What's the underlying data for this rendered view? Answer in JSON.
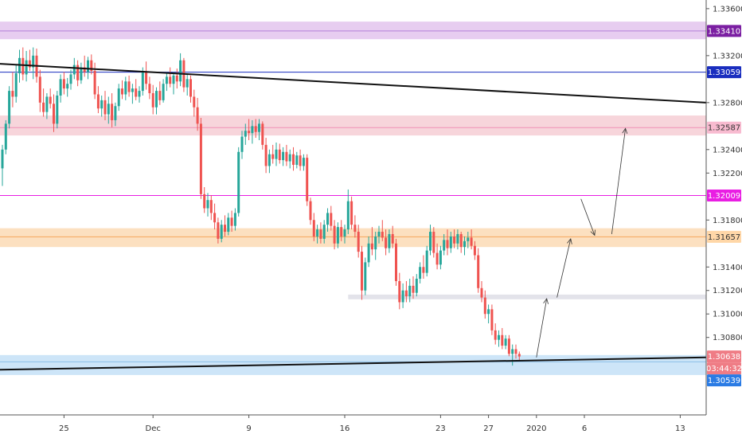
{
  "chart_data": {
    "type": "candlestick",
    "y_axis": {
      "ticks": [
        "1.33600",
        "1.33200",
        "1.32800",
        "1.32400",
        "1.32200",
        "1.31800",
        "1.31400",
        "1.31200",
        "1.31000",
        "1.30800"
      ],
      "tick_values": [
        1.336,
        1.332,
        1.328,
        1.324,
        1.322,
        1.318,
        1.314,
        1.312,
        1.31,
        1.308
      ],
      "range": [
        1.3032,
        1.3365
      ]
    },
    "x_axis": {
      "ticks": [
        "25",
        "Dec",
        "9",
        "16",
        "23",
        "27",
        "2020",
        "6",
        "13"
      ],
      "tick_bar_index": [
        18,
        44,
        72,
        100,
        128,
        142,
        156,
        170,
        198
      ],
      "bar_range": [
        0,
        210
      ]
    },
    "price_tags": [
      {
        "label": "1.33410",
        "value": 1.3341,
        "color": "#7b1fa2",
        "text_color": "#ffffff"
      },
      {
        "label": "1.33059",
        "value": 1.33059,
        "color": "#1a2ebf",
        "text_color": "#ffffff"
      },
      {
        "label": "1.32587",
        "value": 1.32587,
        "color": "#f8bbd0",
        "text_color": "#333333"
      },
      {
        "label": "1.32009",
        "value": 1.32009,
        "color": "#e91ee3",
        "text_color": "#ffffff"
      },
      {
        "label": "1.31657",
        "value": 1.31657,
        "color": "#ffd7a8",
        "text_color": "#333333"
      },
      {
        "label": "1.30638",
        "value": 1.30638,
        "color": "#ef7c85",
        "text_color": "#ffffff"
      },
      {
        "label": "03:44:32",
        "value": 1.30592,
        "color": "#ef7c85",
        "text_color": "#ffffff"
      },
      {
        "label": "1.30539",
        "value": 1.30539,
        "color": "#2a7be4",
        "text_color": "#ffffff"
      }
    ],
    "zones": [
      {
        "name": "resistance-zone-top",
        "from": 1.3334,
        "to": 1.3349,
        "fill": "#e7cdf0",
        "line": 1.3341,
        "line_color": "#b380d9",
        "x_from_bar": 0
      },
      {
        "name": "resistance-zone-mid",
        "from": 1.3252,
        "to": 1.3269,
        "fill": "#f7d5db",
        "line": 1.32587,
        "line_color": "#ef8fb5",
        "x_from_bar": 0
      },
      {
        "name": "resistance-zone-low",
        "from": 1.3157,
        "to": 1.3173,
        "fill": "#fce0c0",
        "line": 1.31657,
        "line_color": "#f5a65b",
        "x_from_bar": 0
      },
      {
        "name": "support-zone",
        "from": 1.3048,
        "to": 1.3065,
        "fill": "#cde5f8",
        "line": 1.30592,
        "line_color": "#8cbfe8",
        "x_from_bar": 0
      },
      {
        "name": "grey-zone",
        "from": 1.31125,
        "to": 1.31165,
        "fill": "#e3e3ea",
        "line": null,
        "line_color": null,
        "x_from_bar": 101
      }
    ],
    "horizontal_lines": [
      {
        "value": 1.33059,
        "color": "#1a2ebf"
      },
      {
        "value": 1.32009,
        "color": "#e91ee3"
      }
    ],
    "trend_lines": [
      {
        "from": {
          "bar": 0,
          "value": 1.3313
        },
        "to": {
          "bar": 210,
          "value": 1.328
        },
        "color": "#111111"
      },
      {
        "from": {
          "bar": 0,
          "value": 1.30525
        },
        "to": {
          "bar": 210,
          "value": 1.3063
        },
        "color": "#111111"
      }
    ],
    "projection_arrows": [
      {
        "from": {
          "bar": 156,
          "value": 1.3063
        },
        "to": {
          "bar": 159,
          "value": 1.3113
        }
      },
      {
        "from": {
          "bar": 162,
          "value": 1.3114
        },
        "to": {
          "bar": 166,
          "value": 1.3164
        }
      },
      {
        "from": {
          "bar": 169,
          "value": 1.3198
        },
        "to": {
          "bar": 173,
          "value": 1.3167
        }
      },
      {
        "from": {
          "bar": 178,
          "value": 1.3168
        },
        "to": {
          "bar": 182,
          "value": 1.3258
        }
      }
    ],
    "candles": [
      [
        1.3224,
        1.3244,
        1.3209,
        1.324
      ],
      [
        1.324,
        1.3265,
        1.3236,
        1.3262
      ],
      [
        1.3262,
        1.3294,
        1.3258,
        1.329
      ],
      [
        1.329,
        1.3306,
        1.3276,
        1.3285
      ],
      [
        1.3285,
        1.3312,
        1.328,
        1.3305
      ],
      [
        1.3305,
        1.3325,
        1.3297,
        1.3318
      ],
      [
        1.3318,
        1.3327,
        1.3299,
        1.3304
      ],
      [
        1.3304,
        1.3324,
        1.3298,
        1.3316
      ],
      [
        1.3316,
        1.3325,
        1.3307,
        1.331
      ],
      [
        1.331,
        1.3327,
        1.33,
        1.332
      ],
      [
        1.332,
        1.3326,
        1.3297,
        1.3302
      ],
      [
        1.3302,
        1.3308,
        1.3272,
        1.328
      ],
      [
        1.328,
        1.3292,
        1.3268,
        1.3272
      ],
      [
        1.3272,
        1.3288,
        1.3266,
        1.3285
      ],
      [
        1.3285,
        1.3292,
        1.3275,
        1.3279
      ],
      [
        1.3279,
        1.3287,
        1.3255,
        1.3262
      ],
      [
        1.3262,
        1.329,
        1.3258,
        1.3286
      ],
      [
        1.3286,
        1.3304,
        1.328,
        1.33
      ],
      [
        1.33,
        1.3306,
        1.3287,
        1.3292
      ],
      [
        1.3292,
        1.3301,
        1.3285,
        1.3296
      ],
      [
        1.3296,
        1.3308,
        1.3291,
        1.3304
      ],
      [
        1.3304,
        1.3318,
        1.33,
        1.3312
      ],
      [
        1.3312,
        1.3316,
        1.3294,
        1.3299
      ],
      [
        1.3299,
        1.3314,
        1.3296,
        1.331
      ],
      [
        1.331,
        1.332,
        1.3302,
        1.3306
      ],
      [
        1.3306,
        1.3319,
        1.33,
        1.3316
      ],
      [
        1.3316,
        1.3321,
        1.3304,
        1.3307
      ],
      [
        1.3307,
        1.3314,
        1.3283,
        1.3287
      ],
      [
        1.3287,
        1.3294,
        1.3271,
        1.3275
      ],
      [
        1.3275,
        1.3286,
        1.3268,
        1.3282
      ],
      [
        1.3282,
        1.329,
        1.3265,
        1.327
      ],
      [
        1.327,
        1.3285,
        1.3262,
        1.3279
      ],
      [
        1.3279,
        1.3288,
        1.3259,
        1.3265
      ],
      [
        1.3265,
        1.328,
        1.326,
        1.3277
      ],
      [
        1.3277,
        1.3296,
        1.3273,
        1.3292
      ],
      [
        1.3292,
        1.3299,
        1.3283,
        1.3287
      ],
      [
        1.3287,
        1.3302,
        1.3282,
        1.3298
      ],
      [
        1.3298,
        1.3303,
        1.3285,
        1.3289
      ],
      [
        1.3289,
        1.3296,
        1.3279,
        1.3292
      ],
      [
        1.3292,
        1.33,
        1.3282,
        1.3285
      ],
      [
        1.3285,
        1.3294,
        1.328,
        1.329
      ],
      [
        1.329,
        1.331,
        1.3286,
        1.3306
      ],
      [
        1.3306,
        1.3315,
        1.3291,
        1.3296
      ],
      [
        1.3296,
        1.3302,
        1.3283,
        1.3288
      ],
      [
        1.3288,
        1.3295,
        1.327,
        1.3276
      ],
      [
        1.3276,
        1.3293,
        1.327,
        1.329
      ],
      [
        1.329,
        1.3298,
        1.3278,
        1.3282
      ],
      [
        1.3282,
        1.33,
        1.328,
        1.3296
      ],
      [
        1.3296,
        1.3306,
        1.329,
        1.3302
      ],
      [
        1.3302,
        1.331,
        1.3293,
        1.3296
      ],
      [
        1.3296,
        1.3306,
        1.3287,
        1.3303
      ],
      [
        1.3303,
        1.3309,
        1.3292,
        1.3298
      ],
      [
        1.3298,
        1.3322,
        1.3294,
        1.3316
      ],
      [
        1.3316,
        1.3318,
        1.3289,
        1.3293
      ],
      [
        1.3293,
        1.3304,
        1.3286,
        1.33
      ],
      [
        1.33,
        1.3303,
        1.328,
        1.3285
      ],
      [
        1.3285,
        1.3291,
        1.3268,
        1.3276
      ],
      [
        1.3276,
        1.3284,
        1.3256,
        1.3262
      ],
      [
        1.3262,
        1.3267,
        1.3198,
        1.3202
      ],
      [
        1.3202,
        1.3208,
        1.3186,
        1.319
      ],
      [
        1.319,
        1.3203,
        1.3183,
        1.3197
      ],
      [
        1.3197,
        1.3201,
        1.318,
        1.3186
      ],
      [
        1.3186,
        1.3194,
        1.3172,
        1.3178
      ],
      [
        1.3178,
        1.3182,
        1.316,
        1.3164
      ],
      [
        1.3164,
        1.318,
        1.3161,
        1.3176
      ],
      [
        1.3176,
        1.3184,
        1.3166,
        1.317
      ],
      [
        1.317,
        1.3186,
        1.3167,
        1.3182
      ],
      [
        1.3182,
        1.3188,
        1.317,
        1.3175
      ],
      [
        1.3175,
        1.319,
        1.3171,
        1.3186
      ],
      [
        1.3186,
        1.3242,
        1.3183,
        1.3238
      ],
      [
        1.3238,
        1.3256,
        1.3232,
        1.3251
      ],
      [
        1.3251,
        1.3262,
        1.3244,
        1.3256
      ],
      [
        1.3256,
        1.3266,
        1.3248,
        1.3254
      ],
      [
        1.3254,
        1.3265,
        1.3245,
        1.326
      ],
      [
        1.326,
        1.3266,
        1.325,
        1.3255
      ],
      [
        1.3255,
        1.3266,
        1.3248,
        1.3262
      ],
      [
        1.3262,
        1.3264,
        1.324,
        1.3244
      ],
      [
        1.3244,
        1.325,
        1.322,
        1.3226
      ],
      [
        1.3226,
        1.324,
        1.322,
        1.3236
      ],
      [
        1.3236,
        1.3244,
        1.3228,
        1.3232
      ],
      [
        1.3232,
        1.3246,
        1.3226,
        1.324
      ],
      [
        1.324,
        1.3245,
        1.3228,
        1.3231
      ],
      [
        1.3231,
        1.3242,
        1.3226,
        1.3238
      ],
      [
        1.3238,
        1.3244,
        1.3226,
        1.323
      ],
      [
        1.323,
        1.324,
        1.3224,
        1.3236
      ],
      [
        1.3236,
        1.3242,
        1.3222,
        1.3227
      ],
      [
        1.3227,
        1.3238,
        1.3224,
        1.3235
      ],
      [
        1.3235,
        1.324,
        1.3222,
        1.3226
      ],
      [
        1.3226,
        1.3236,
        1.3222,
        1.3233
      ],
      [
        1.3233,
        1.3236,
        1.3192,
        1.3196
      ],
      [
        1.3196,
        1.3199,
        1.3176,
        1.318
      ],
      [
        1.318,
        1.3186,
        1.3162,
        1.3166
      ],
      [
        1.3166,
        1.3176,
        1.316,
        1.3172
      ],
      [
        1.3172,
        1.3178,
        1.316,
        1.3164
      ],
      [
        1.3164,
        1.318,
        1.316,
        1.3176
      ],
      [
        1.3176,
        1.319,
        1.317,
        1.3186
      ],
      [
        1.3186,
        1.3192,
        1.3171,
        1.3175
      ],
      [
        1.3175,
        1.318,
        1.3155,
        1.316
      ],
      [
        1.316,
        1.3178,
        1.3156,
        1.3174
      ],
      [
        1.3174,
        1.318,
        1.3162,
        1.3166
      ],
      [
        1.3166,
        1.3176,
        1.316,
        1.3172
      ],
      [
        1.3172,
        1.3206,
        1.3168,
        1.3196
      ],
      [
        1.3196,
        1.32,
        1.3172,
        1.3176
      ],
      [
        1.3176,
        1.3184,
        1.3165,
        1.317
      ],
      [
        1.317,
        1.3176,
        1.3148,
        1.3153
      ],
      [
        1.3153,
        1.3158,
        1.3112,
        1.312
      ],
      [
        1.312,
        1.3148,
        1.3116,
        1.3144
      ],
      [
        1.3144,
        1.3166,
        1.314,
        1.316
      ],
      [
        1.316,
        1.3174,
        1.315,
        1.3155
      ],
      [
        1.3155,
        1.317,
        1.3146,
        1.3166
      ],
      [
        1.3166,
        1.3175,
        1.316,
        1.317
      ],
      [
        1.317,
        1.318,
        1.3162,
        1.3165
      ],
      [
        1.3165,
        1.3172,
        1.315,
        1.3156
      ],
      [
        1.3156,
        1.3172,
        1.3152,
        1.3168
      ],
      [
        1.3168,
        1.3175,
        1.3156,
        1.316
      ],
      [
        1.316,
        1.3164,
        1.3124,
        1.3128
      ],
      [
        1.3128,
        1.3135,
        1.3104,
        1.311
      ],
      [
        1.311,
        1.3126,
        1.3105,
        1.312
      ],
      [
        1.312,
        1.3128,
        1.311,
        1.3115
      ],
      [
        1.3115,
        1.313,
        1.311,
        1.3124
      ],
      [
        1.3124,
        1.3132,
        1.3113,
        1.3118
      ],
      [
        1.3118,
        1.3134,
        1.3115,
        1.313
      ],
      [
        1.313,
        1.3144,
        1.3126,
        1.314
      ],
      [
        1.314,
        1.315,
        1.313,
        1.3135
      ],
      [
        1.3135,
        1.3158,
        1.3132,
        1.3154
      ],
      [
        1.3154,
        1.3176,
        1.315,
        1.317
      ],
      [
        1.317,
        1.3174,
        1.3148,
        1.3152
      ],
      [
        1.3152,
        1.316,
        1.3138,
        1.3142
      ],
      [
        1.3142,
        1.3158,
        1.3138,
        1.3154
      ],
      [
        1.3154,
        1.3168,
        1.315,
        1.3163
      ],
      [
        1.3163,
        1.3172,
        1.315,
        1.3156
      ],
      [
        1.3156,
        1.317,
        1.3152,
        1.3166
      ],
      [
        1.3166,
        1.3172,
        1.3156,
        1.316
      ],
      [
        1.316,
        1.3172,
        1.3155,
        1.3168
      ],
      [
        1.3168,
        1.317,
        1.3152,
        1.3157
      ],
      [
        1.3157,
        1.3166,
        1.315,
        1.3162
      ],
      [
        1.3162,
        1.317,
        1.3156,
        1.3165
      ],
      [
        1.3165,
        1.3172,
        1.3155,
        1.3158
      ],
      [
        1.3158,
        1.3162,
        1.3146,
        1.315
      ],
      [
        1.315,
        1.3156,
        1.3118,
        1.3122
      ],
      [
        1.3122,
        1.3128,
        1.311,
        1.3114
      ],
      [
        1.3114,
        1.312,
        1.3096,
        1.31
      ],
      [
        1.31,
        1.3108,
        1.3092,
        1.3104
      ],
      [
        1.3104,
        1.3108,
        1.3082,
        1.3086
      ],
      [
        1.3086,
        1.3092,
        1.3074,
        1.3078
      ],
      [
        1.3078,
        1.3086,
        1.3072,
        1.3082
      ],
      [
        1.3082,
        1.3088,
        1.307,
        1.3073
      ],
      [
        1.3073,
        1.3082,
        1.307,
        1.3079
      ],
      [
        1.3079,
        1.3082,
        1.3064,
        1.3066
      ],
      [
        1.3066,
        1.3074,
        1.3056,
        1.307
      ],
      [
        1.307,
        1.3074,
        1.3062,
        1.3066
      ],
      [
        1.3066,
        1.3068,
        1.306,
        1.30638
      ]
    ]
  }
}
